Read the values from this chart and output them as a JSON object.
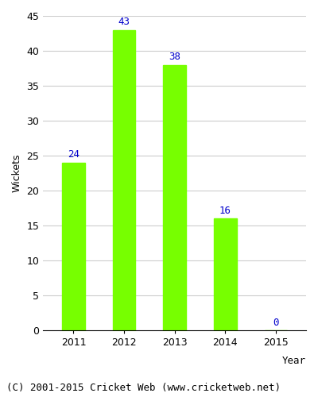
{
  "years": [
    "2011",
    "2012",
    "2013",
    "2014",
    "2015"
  ],
  "values": [
    24,
    43,
    38,
    16,
    0
  ],
  "bar_color": "#77ff00",
  "bar_edge_color": "#77ff00",
  "label_color": "#0000cc",
  "ylabel": "Wickets",
  "xlabel": "Year",
  "ylim": [
    0,
    45
  ],
  "yticks": [
    0,
    5,
    10,
    15,
    20,
    25,
    30,
    35,
    40,
    45
  ],
  "caption": "(C) 2001-2015 Cricket Web (www.cricketweb.net)",
  "label_fontsize": 9,
  "axis_fontsize": 9,
  "caption_fontsize": 9,
  "background_color": "#ffffff",
  "grid_color": "#cccccc",
  "bar_width": 0.45
}
